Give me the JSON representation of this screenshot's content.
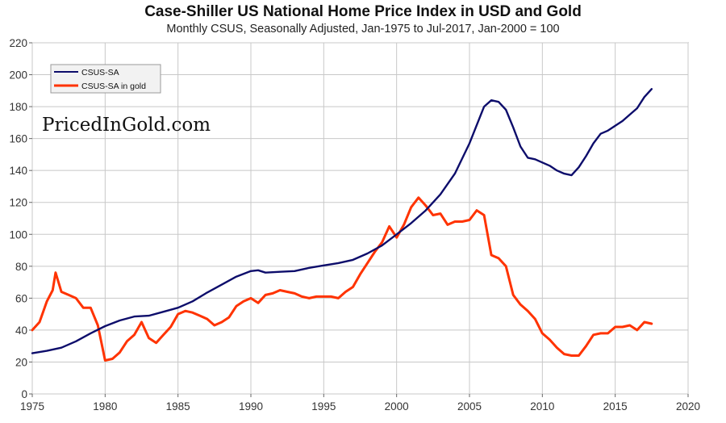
{
  "chart_data": {
    "type": "line",
    "title": "Case-Shiller US National Home Price Index in USD and Gold",
    "subtitle": "Monthly CSUS, Seasonally Adjusted, Jan-1975 to Jul-2017, Jan-2000 = 100",
    "watermark": "PricedInGold.com",
    "xlabel": "",
    "ylabel": "",
    "xlim": [
      1975,
      2020
    ],
    "ylim": [
      0,
      220
    ],
    "xticks": [
      1975,
      1980,
      1985,
      1990,
      1995,
      2000,
      2005,
      2010,
      2015,
      2020
    ],
    "yticks": [
      0,
      20,
      40,
      60,
      80,
      100,
      120,
      140,
      160,
      180,
      200,
      220
    ],
    "grid": true,
    "legend_position": "top-left",
    "series": [
      {
        "name": "CSUS-SA",
        "color": "#0d0d6b",
        "points": [
          [
            1975.0,
            25.5
          ],
          [
            1976.0,
            27
          ],
          [
            1977.0,
            29
          ],
          [
            1978.0,
            33
          ],
          [
            1979.0,
            38
          ],
          [
            1980.0,
            42.5
          ],
          [
            1981.0,
            46
          ],
          [
            1982.0,
            48.5
          ],
          [
            1983.0,
            49
          ],
          [
            1984.0,
            51.5
          ],
          [
            1985.0,
            54
          ],
          [
            1986.0,
            58
          ],
          [
            1987.0,
            63.5
          ],
          [
            1988.0,
            68.5
          ],
          [
            1989.0,
            73.5
          ],
          [
            1990.0,
            77
          ],
          [
            1990.5,
            77.5
          ],
          [
            1991.0,
            76
          ],
          [
            1992.0,
            76.5
          ],
          [
            1993.0,
            77
          ],
          [
            1994.0,
            79
          ],
          [
            1995.0,
            80.5
          ],
          [
            1996.0,
            82
          ],
          [
            1997.0,
            84
          ],
          [
            1998.0,
            88
          ],
          [
            1999.0,
            93
          ],
          [
            2000.0,
            100
          ],
          [
            2001.0,
            107
          ],
          [
            2002.0,
            115
          ],
          [
            2003.0,
            125
          ],
          [
            2004.0,
            138
          ],
          [
            2005.0,
            157
          ],
          [
            2006.0,
            180
          ],
          [
            2006.5,
            184
          ],
          [
            2007.0,
            183
          ],
          [
            2007.5,
            178
          ],
          [
            2008.0,
            167
          ],
          [
            2008.5,
            155
          ],
          [
            2009.0,
            148
          ],
          [
            2009.5,
            147
          ],
          [
            2010.0,
            145
          ],
          [
            2010.5,
            143
          ],
          [
            2011.0,
            140
          ],
          [
            2011.5,
            138
          ],
          [
            2012.0,
            137
          ],
          [
            2012.5,
            142
          ],
          [
            2013.0,
            149
          ],
          [
            2013.5,
            157
          ],
          [
            2014.0,
            163
          ],
          [
            2014.5,
            165
          ],
          [
            2015.0,
            168
          ],
          [
            2015.5,
            171
          ],
          [
            2016.0,
            175
          ],
          [
            2016.5,
            179
          ],
          [
            2017.0,
            186
          ],
          [
            2017.5,
            191
          ]
        ]
      },
      {
        "name": "CSUS-SA in gold",
        "color": "#ff3300",
        "points": [
          [
            1975.0,
            40
          ],
          [
            1975.5,
            45
          ],
          [
            1976.0,
            58
          ],
          [
            1976.4,
            65
          ],
          [
            1976.6,
            76
          ],
          [
            1977.0,
            64
          ],
          [
            1977.5,
            62
          ],
          [
            1978.0,
            60
          ],
          [
            1978.5,
            54
          ],
          [
            1979.0,
            54
          ],
          [
            1979.5,
            43
          ],
          [
            1980.0,
            21
          ],
          [
            1980.5,
            22
          ],
          [
            1981.0,
            26
          ],
          [
            1981.5,
            33
          ],
          [
            1982.0,
            37
          ],
          [
            1982.5,
            45
          ],
          [
            1983.0,
            35
          ],
          [
            1983.5,
            32
          ],
          [
            1984.0,
            37
          ],
          [
            1984.5,
            42
          ],
          [
            1985.0,
            50
          ],
          [
            1985.5,
            52
          ],
          [
            1986.0,
            51
          ],
          [
            1986.5,
            49
          ],
          [
            1987.0,
            47
          ],
          [
            1987.5,
            43
          ],
          [
            1988.0,
            45
          ],
          [
            1988.5,
            48
          ],
          [
            1989.0,
            55
          ],
          [
            1989.5,
            58
          ],
          [
            1990.0,
            60
          ],
          [
            1990.5,
            57
          ],
          [
            1991.0,
            62
          ],
          [
            1991.5,
            63
          ],
          [
            1992.0,
            65
          ],
          [
            1992.5,
            64
          ],
          [
            1993.0,
            63
          ],
          [
            1993.5,
            61
          ],
          [
            1994.0,
            60
          ],
          [
            1994.5,
            61
          ],
          [
            1995.0,
            61
          ],
          [
            1995.5,
            61
          ],
          [
            1996.0,
            60
          ],
          [
            1996.5,
            64
          ],
          [
            1997.0,
            67
          ],
          [
            1997.5,
            75
          ],
          [
            1998.0,
            82
          ],
          [
            1998.5,
            89
          ],
          [
            1999.0,
            95
          ],
          [
            1999.5,
            105
          ],
          [
            2000.0,
            98
          ],
          [
            2000.5,
            106
          ],
          [
            2001.0,
            117
          ],
          [
            2001.5,
            123
          ],
          [
            2002.0,
            118
          ],
          [
            2002.5,
            112
          ],
          [
            2003.0,
            113
          ],
          [
            2003.5,
            106
          ],
          [
            2004.0,
            108
          ],
          [
            2004.5,
            108
          ],
          [
            2005.0,
            109
          ],
          [
            2005.5,
            115
          ],
          [
            2006.0,
            112
          ],
          [
            2006.5,
            87
          ],
          [
            2007.0,
            85
          ],
          [
            2007.5,
            80
          ],
          [
            2008.0,
            62
          ],
          [
            2008.5,
            56
          ],
          [
            2009.0,
            52
          ],
          [
            2009.5,
            47
          ],
          [
            2010.0,
            38
          ],
          [
            2010.5,
            34
          ],
          [
            2011.0,
            29
          ],
          [
            2011.5,
            25
          ],
          [
            2012.0,
            24
          ],
          [
            2012.5,
            24
          ],
          [
            2013.0,
            30
          ],
          [
            2013.5,
            37
          ],
          [
            2014.0,
            38
          ],
          [
            2014.5,
            38
          ],
          [
            2015.0,
            42
          ],
          [
            2015.5,
            42
          ],
          [
            2016.0,
            43
          ],
          [
            2016.5,
            40
          ],
          [
            2017.0,
            45
          ],
          [
            2017.5,
            44
          ]
        ]
      }
    ]
  }
}
